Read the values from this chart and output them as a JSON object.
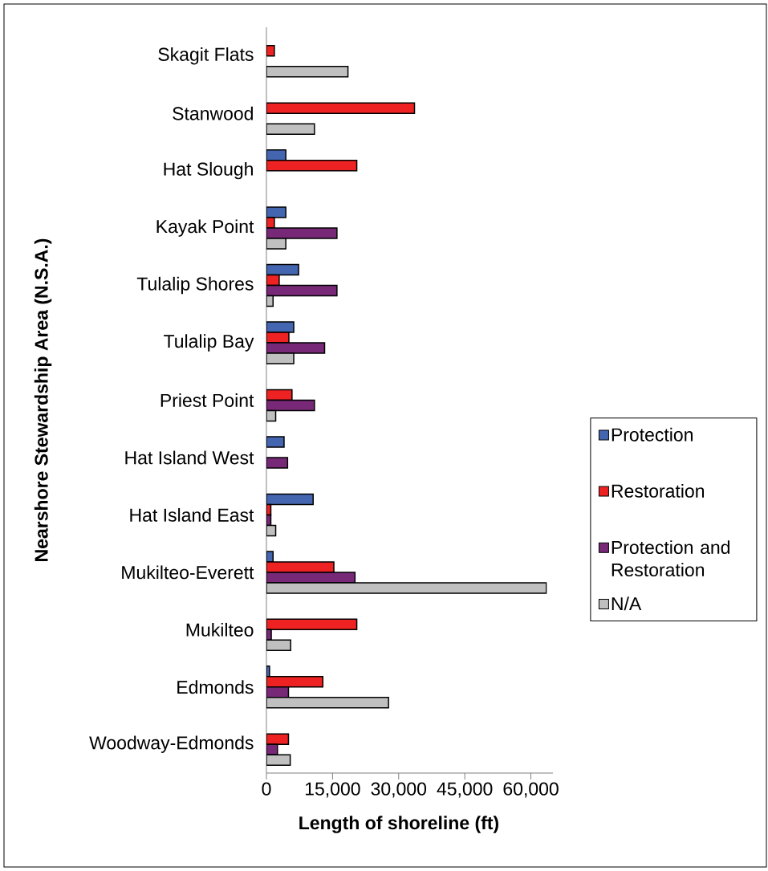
{
  "chart_data": {
    "type": "bar",
    "orientation": "horizontal",
    "xlabel": "Length of shoreline (ft)",
    "ylabel": "Nearshore Stewardship Area (N.S.A.)",
    "categories": [
      "Skagit Flats",
      "Stanwood",
      "Hat Slough",
      "Kayak Point",
      "Tulalip Shores",
      "Tulalip Bay",
      "Priest Point",
      "Hat Island West",
      "Hat Island East",
      "Mukilteo-Everett",
      "Mukilteo",
      "Edmonds",
      "Woodway-Edmonds"
    ],
    "series": [
      {
        "name": "Protection",
        "color": "#4466b0",
        "values": [
          null,
          null,
          4400,
          4400,
          7300,
          6200,
          null,
          4000,
          10600,
          1500,
          null,
          700,
          null
        ]
      },
      {
        "name": "Restoration",
        "color": "#ee2222",
        "values": [
          1800,
          33600,
          20500,
          1800,
          2900,
          5100,
          5800,
          null,
          1000,
          15300,
          20500,
          12800,
          5000
        ]
      },
      {
        "name": "Protection and Restoration",
        "color": "#772877",
        "values": [
          null,
          null,
          null,
          16000,
          16000,
          13200,
          10900,
          4800,
          1000,
          20100,
          1100,
          5000,
          2500
        ]
      },
      {
        "name": "N/A",
        "color": "#c0c0c0",
        "values": [
          18500,
          10900,
          null,
          4400,
          1500,
          6200,
          2100,
          null,
          2100,
          63500,
          5500,
          27700,
          5400
        ]
      }
    ],
    "xlim": [
      0,
      65000
    ],
    "xticks": [
      0,
      {
        "value": 15000,
        "label": "15,000"
      },
      {
        "value": 30000,
        "label": "30,000"
      },
      {
        "value": 45000,
        "label": "45,000"
      },
      {
        "value": 60000,
        "label": "60,000"
      }
    ],
    "grid": false,
    "legend": "right"
  }
}
